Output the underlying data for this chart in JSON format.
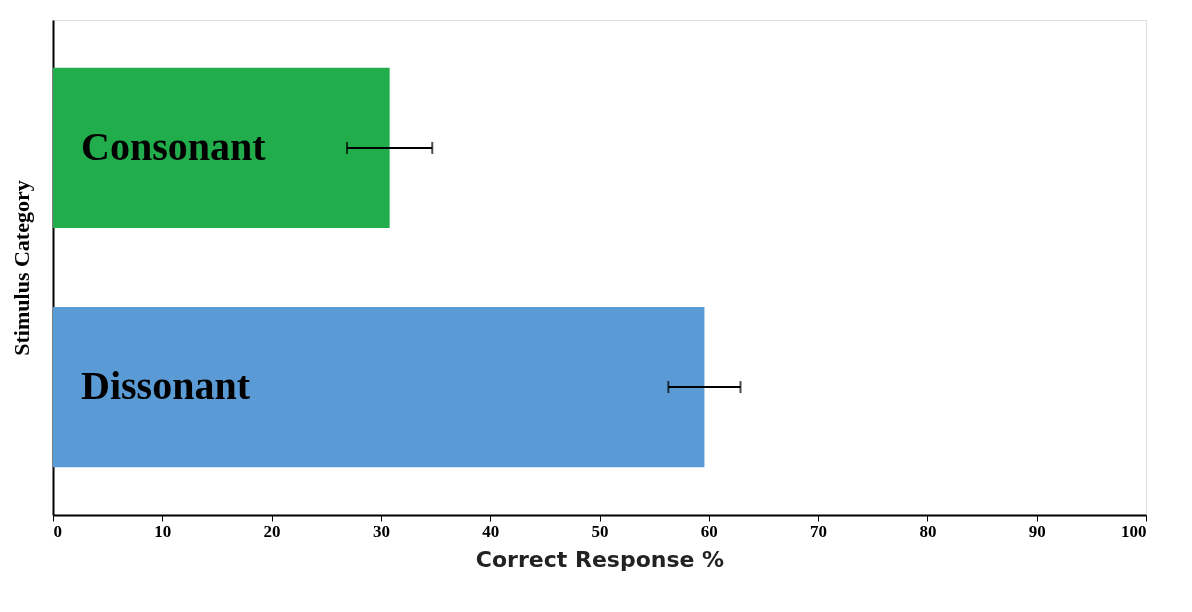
{
  "chart_data": {
    "type": "bar",
    "orientation": "horizontal",
    "xlabel": "Correct Response %",
    "ylabel": "Stimulus Category",
    "categories": [
      "Consonant",
      "Dissonant"
    ],
    "values": [
      30.8,
      59.6
    ],
    "colors": [
      "#21ad4b",
      "#5b9bd5"
    ],
    "errors": [
      3.9,
      3.3
    ],
    "xlim": [
      0,
      100
    ],
    "xticks": [
      0,
      10,
      20,
      30,
      40,
      50,
      60,
      70,
      80,
      90,
      100
    ],
    "tick_labels": "x",
    "grid": false,
    "legend": false
  }
}
